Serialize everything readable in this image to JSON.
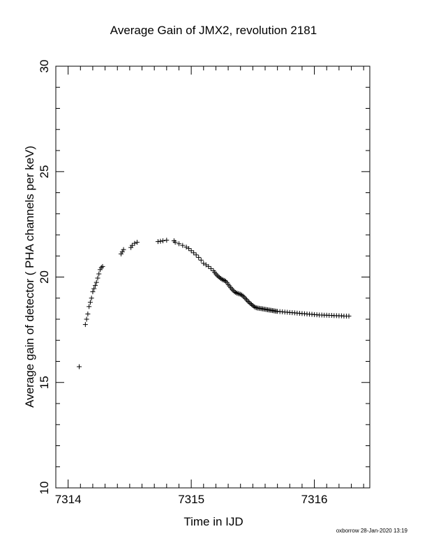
{
  "footer_text": "oxborrow 28-Jan-2020 13:19",
  "chart_data": {
    "type": "scatter",
    "title": "Average Gain of JMX2, revolution 2181",
    "xlabel": "Time in IJD",
    "ylabel": "Average gain of detector ( PHA channels per keV)",
    "xlim": [
      7313.9,
      7316.45
    ],
    "ylim": [
      10,
      30
    ],
    "xticks": [
      "7314",
      "7315",
      "7316"
    ],
    "yticks": [
      "10",
      "15",
      "20",
      "25",
      "30"
    ],
    "grid": false,
    "marker": "+",
    "color": "#000000",
    "x": [
      7314.09,
      7314.14,
      7314.15,
      7314.16,
      7314.17,
      7314.18,
      7314.19,
      7314.2,
      7314.21,
      7314.22,
      7314.23,
      7314.24,
      7314.25,
      7314.26,
      7314.27,
      7314.28,
      7314.43,
      7314.44,
      7314.45,
      7314.51,
      7314.52,
      7314.54,
      7314.56,
      7314.73,
      7314.75,
      7314.77,
      7314.8,
      7314.86,
      7314.87,
      7314.9,
      7314.93,
      7314.96,
      7314.98,
      7315.0,
      7315.02,
      7315.04,
      7315.06,
      7315.08,
      7315.1,
      7315.12,
      7315.14,
      7315.16,
      7315.18,
      7315.19,
      7315.2,
      7315.21,
      7315.22,
      7315.23,
      7315.24,
      7315.25,
      7315.26,
      7315.27,
      7315.28,
      7315.29,
      7315.3,
      7315.31,
      7315.32,
      7315.33,
      7315.34,
      7315.35,
      7315.36,
      7315.37,
      7315.38,
      7315.39,
      7315.4,
      7315.41,
      7315.42,
      7315.43,
      7315.44,
      7315.45,
      7315.46,
      7315.47,
      7315.48,
      7315.49,
      7315.5,
      7315.51,
      7315.52,
      7315.53,
      7315.54,
      7315.55,
      7315.56,
      7315.57,
      7315.58,
      7315.59,
      7315.6,
      7315.61,
      7315.62,
      7315.63,
      7315.64,
      7315.65,
      7315.66,
      7315.67,
      7315.68,
      7315.69,
      7315.7,
      7315.72,
      7315.74,
      7315.76,
      7315.78,
      7315.8,
      7315.82,
      7315.84,
      7315.86,
      7315.88,
      7315.9,
      7315.92,
      7315.94,
      7315.96,
      7315.98,
      7316.0,
      7316.02,
      7316.04,
      7316.06,
      7316.08,
      7316.1,
      7316.12,
      7316.14,
      7316.16,
      7316.18,
      7316.2,
      7316.22,
      7316.24,
      7316.26,
      7316.28
    ],
    "y": [
      15.75,
      17.75,
      18.0,
      18.25,
      18.6,
      18.8,
      19.0,
      19.3,
      19.45,
      19.6,
      19.75,
      19.95,
      20.15,
      20.35,
      20.45,
      20.5,
      21.1,
      21.2,
      21.3,
      21.4,
      21.5,
      21.6,
      21.65,
      21.68,
      21.7,
      21.72,
      21.75,
      21.72,
      21.65,
      21.58,
      21.5,
      21.42,
      21.35,
      21.25,
      21.15,
      21.05,
      20.93,
      20.8,
      20.65,
      20.58,
      20.5,
      20.4,
      20.3,
      20.22,
      20.15,
      20.08,
      20.02,
      19.98,
      19.93,
      19.89,
      19.86,
      19.84,
      19.8,
      19.73,
      19.65,
      19.58,
      19.5,
      19.43,
      19.37,
      19.3,
      19.27,
      19.24,
      19.22,
      19.2,
      19.18,
      19.15,
      19.1,
      19.05,
      18.98,
      18.92,
      18.85,
      18.8,
      18.74,
      18.7,
      18.65,
      18.6,
      18.56,
      18.54,
      18.53,
      18.52,
      18.51,
      18.5,
      18.49,
      18.48,
      18.47,
      18.46,
      18.45,
      18.44,
      18.43,
      18.42,
      18.41,
      18.4,
      18.39,
      18.38,
      18.37,
      18.36,
      18.35,
      18.34,
      18.33,
      18.32,
      18.31,
      18.3,
      18.29,
      18.28,
      18.27,
      18.26,
      18.25,
      18.24,
      18.23,
      18.22,
      18.21,
      18.2,
      18.2,
      18.19,
      18.19,
      18.18,
      18.18,
      18.17,
      18.17,
      18.16,
      18.16,
      18.15,
      18.15,
      18.15
    ]
  }
}
